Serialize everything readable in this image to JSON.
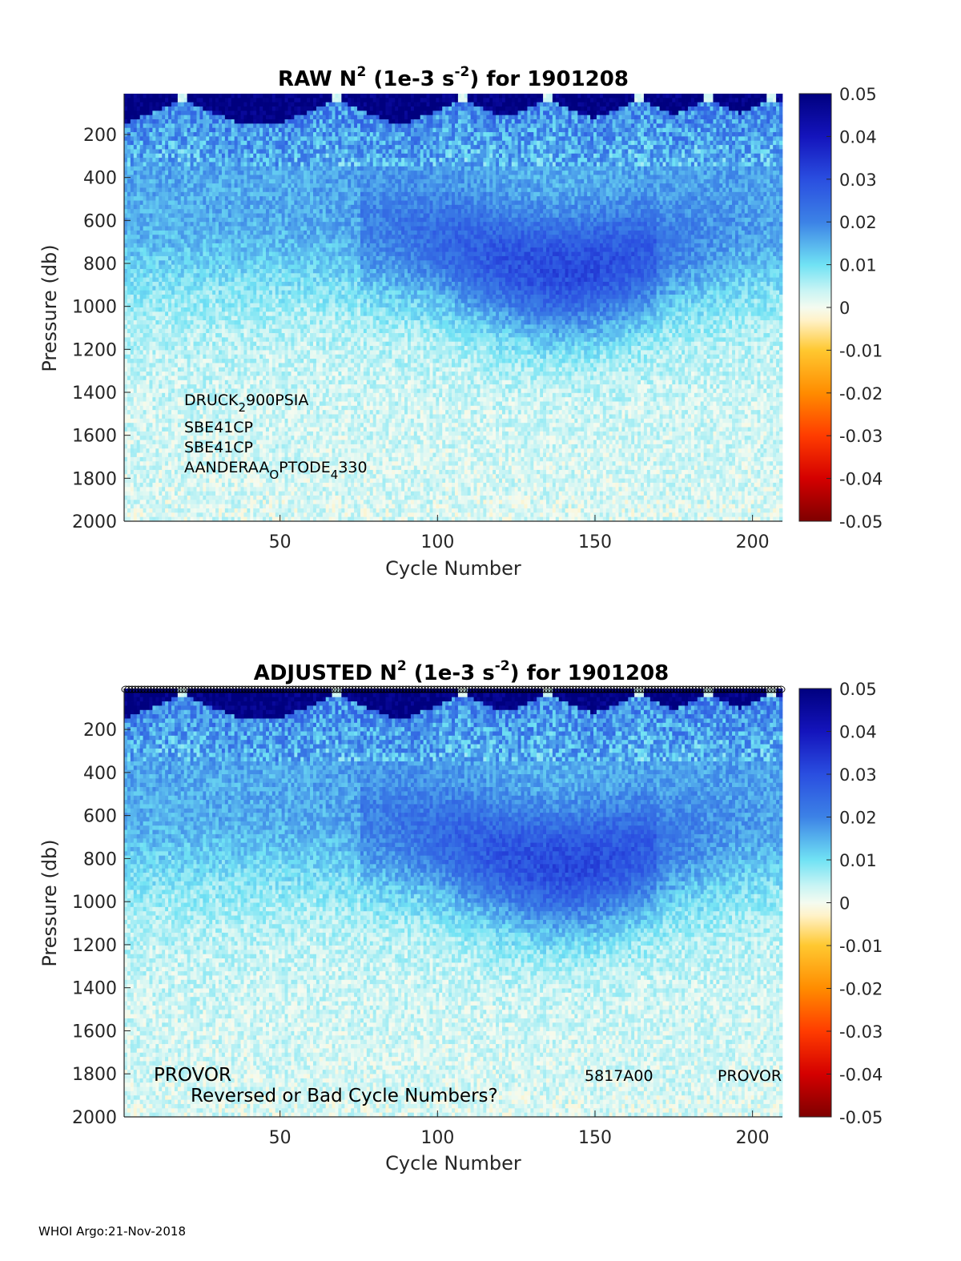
{
  "footer": "WHOI Argo:21-Nov-2018",
  "colormap": {
    "stops": [
      {
        "v": -0.05,
        "color": "#7f0000"
      },
      {
        "v": -0.04,
        "color": "#d40000"
      },
      {
        "v": -0.03,
        "color": "#ff3c00"
      },
      {
        "v": -0.02,
        "color": "#ff8c00"
      },
      {
        "v": -0.01,
        "color": "#ffc830"
      },
      {
        "v": -0.003,
        "color": "#fff2c8"
      },
      {
        "v": 0.0,
        "color": "#f4fbf0"
      },
      {
        "v": 0.004,
        "color": "#c8f4f4"
      },
      {
        "v": 0.01,
        "color": "#70e2f4"
      },
      {
        "v": 0.02,
        "color": "#3c82e6"
      },
      {
        "v": 0.03,
        "color": "#2a4ee0"
      },
      {
        "v": 0.04,
        "color": "#1414bc"
      },
      {
        "v": 0.05,
        "color": "#00007f"
      }
    ]
  },
  "chart_data": [
    {
      "type": "heatmap",
      "title": "RAW N² (1e-3 s⁻²) for 1901208",
      "title_parts": {
        "pre": "RAW N",
        "sup1": "2",
        "mid": " (1e-3 s",
        "sup2": "-2",
        "post": ") for 1901208"
      },
      "xlabel": "Cycle Number",
      "ylabel": "Pressure (db)",
      "xlim": [
        1,
        209
      ],
      "ylim": [
        2000,
        10
      ],
      "y_reversed": true,
      "xticks": [
        50,
        100,
        150,
        200
      ],
      "yticks": [
        200,
        400,
        600,
        800,
        1000,
        1200,
        1400,
        1600,
        1800,
        2000
      ],
      "colorbar": {
        "range": [
          -0.05,
          0.05
        ],
        "ticks": [
          "0.05",
          "0.04",
          "0.03",
          "0.02",
          "0.01",
          "0",
          "-0.01",
          "-0.02",
          "-0.03",
          "-0.04",
          "-0.05"
        ]
      },
      "annotations": [
        "DRUCK",
        "2",
        "900PSIA",
        "SBE41CP",
        "SBE41CP",
        "AANDERAA",
        "O",
        "PTODE",
        "4",
        "330"
      ],
      "profile_features": {
        "surface_strong_layer_db": [
          10,
          150
        ],
        "mid_maximum_db": [
          600,
          950
        ],
        "mid_maximum_value": 0.025,
        "deep_value": 0.004,
        "gap_cycles": [
          19,
          68,
          108,
          135,
          164,
          186,
          206
        ]
      }
    },
    {
      "type": "heatmap",
      "title": "ADJUSTED N² (1e-3 s⁻²) for 1901208",
      "title_parts": {
        "pre": "ADJUSTED N",
        "sup1": "2",
        "mid": " (1e-3 s",
        "sup2": "-2",
        "post": ") for 1901208"
      },
      "xlabel": "Cycle Number",
      "ylabel": "Pressure (db)",
      "xlim": [
        1,
        209
      ],
      "ylim": [
        2000,
        10
      ],
      "y_reversed": true,
      "xticks": [
        50,
        100,
        150,
        200
      ],
      "yticks": [
        200,
        400,
        600,
        800,
        1000,
        1200,
        1400,
        1600,
        1800,
        2000
      ],
      "colorbar": {
        "range": [
          -0.05,
          0.05
        ],
        "ticks": [
          "0.05",
          "0.04",
          "0.03",
          "0.02",
          "0.01",
          "0",
          "-0.01",
          "-0.02",
          "-0.03",
          "-0.04",
          "-0.05"
        ]
      },
      "annotations": [
        "PROVOR",
        "Reversed or Bad Cycle Numbers?",
        "5817A00",
        "PROVOR"
      ],
      "cycle_markers": "open circles along top edge, cycles 1-209"
    }
  ]
}
